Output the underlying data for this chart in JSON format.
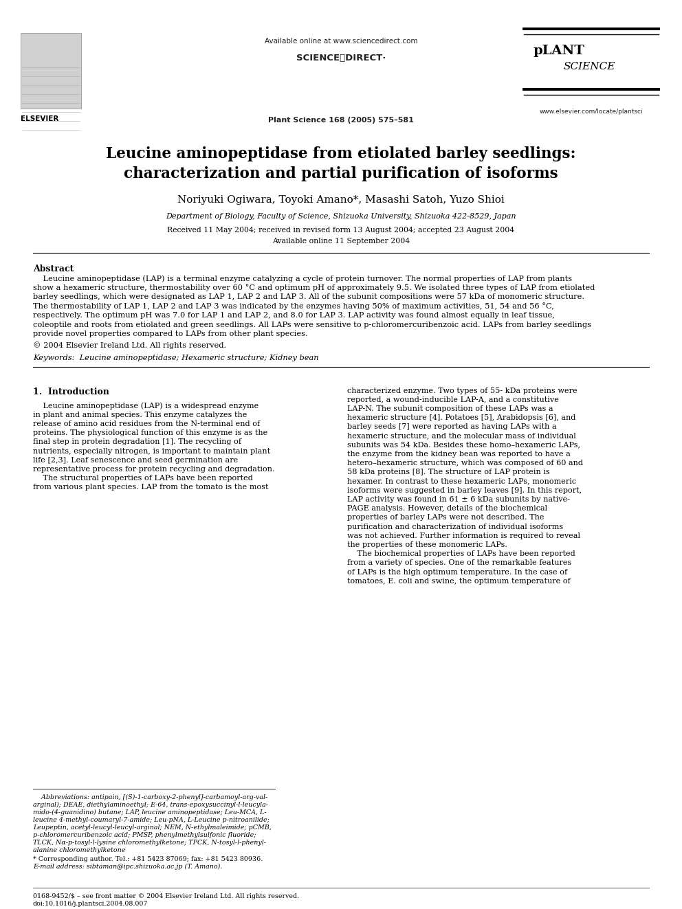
{
  "title_line1": "Leucine aminopeptidase from etiolated barley seedlings:",
  "title_line2": "characterization and partial purification of isoforms",
  "authors": "Noriyuki Ogiwara, Toyoki Amano*, Masashi Satoh, Yuzo Shioi",
  "affiliation": "Department of Biology, Faculty of Science, Shizuoka University, Shizuoka 422-8529, Japan",
  "dates": "Received 11 May 2004; received in revised form 13 August 2004; accepted 23 August 2004",
  "available_online": "Available online 11 September 2004",
  "journal": "Plant Science 168 (2005) 575–581",
  "url_top": "Available online at www.sciencedirect.com",
  "url_bottom": "www.elsevier.com/locate/plantsci",
  "abstract_title": "Abstract",
  "copyright": "© 2004 Elsevier Ireland Ltd. All rights reserved.",
  "keywords": "Keywords:  Leucine aminopeptidase; Hexameric structure; Kidney bean",
  "section1_title": "1.  Introduction",
  "footnote_star": "* Corresponding author. Tel.: +81 5423 87069; fax: +81 5423 80936.",
  "footnote_email": "E-mail address: sibtaman@ipc.shizuoka.ac.jp (T. Amano).",
  "footer_left": "0168-9452/$ – see front matter © 2004 Elsevier Ireland Ltd. All rights reserved.",
  "footer_doi": "doi:10.1016/j.plantsci.2004.08.007",
  "bg_color": "#ffffff",
  "abstract_lines": [
    "    Leucine aminopeptidase (LAP) is a terminal enzyme catalyzing a cycle of protein turnover. The normal properties of LAP from plants",
    "show a hexameric structure, thermostability over 60 °C and optimum pH of approximately 9.5. We isolated three types of LAP from etiolated",
    "barley seedlings, which were designated as LAP 1, LAP 2 and LAP 3. All of the subunit compositions were 57 kDa of monomeric structure.",
    "The thermostability of LAP 1, LAP 2 and LAP 3 was indicated by the enzymes having 50% of maximum activities, 51, 54 and 56 °C,",
    "respectively. The optimum pH was 7.0 for LAP 1 and LAP 2, and 8.0 for LAP 3. LAP activity was found almost equally in leaf tissue,",
    "coleoptile and roots from etiolated and green seedlings. All LAPs were sensitive to p-chloromercuribenzoic acid. LAPs from barley seedlings",
    "provide novel properties compared to LAPs from other plant species."
  ],
  "left_col_lines": [
    "    Leucine aminopeptidase (LAP) is a widespread enzyme",
    "in plant and animal species. This enzyme catalyzes the",
    "release of amino acid residues from the N-terminal end of",
    "proteins. The physiological function of this enzyme is as the",
    "final step in protein degradation [1]. The recycling of",
    "nutrients, especially nitrogen, is important to maintain plant",
    "life [2,3]. Leaf senescence and seed germination are",
    "representative process for protein recycling and degradation.",
    "    The structural properties of LAPs have been reported",
    "from various plant species. LAP from the tomato is the most"
  ],
  "right_col_lines": [
    "characterized enzyme. Two types of 55- kDa proteins were",
    "reported, a wound-inducible LAP-A, and a constitutive",
    "LAP-N. The subunit composition of these LAPs was a",
    "hexameric structure [4]. Potatoes [5], Arabidopsis [6], and",
    "barley seeds [7] were reported as having LAPs with a",
    "hexameric structure, and the molecular mass of individual",
    "subunits was 54 kDa. Besides these homo–hexameric LAPs,",
    "the enzyme from the kidney bean was reported to have a",
    "hetero–hexameric structure, which was composed of 60 and",
    "58 kDa proteins [8]. The structure of LAP protein is",
    "hexamer. In contrast to these hexameric LAPs, monomeric",
    "isoforms were suggested in barley leaves [9]. In this report,",
    "LAP activity was found in 61 ± 6 kDa subunits by native-",
    "PAGE analysis. However, details of the biochemical",
    "properties of barley LAPs were not described. The",
    "purification and characterization of individual isoforms",
    "was not achieved. Further information is required to reveal",
    "the properties of these monomeric LAPs.",
    "    The biochemical properties of LAPs have been reported",
    "from a variety of species. One of the remarkable features",
    "of LAPs is the high optimum temperature. In the case of",
    "tomatoes, E. coli and swine, the optimum temperature of"
  ],
  "fn_lines": [
    "    Abbreviations: antipain, [(S)-1-carboxy-2-phenyl]-carbamoyl-arg-val-",
    "arginal); DEAE, diethylaminoethyl; E-64, trans-epoxysuccinyl-l-leucyla-",
    "mido-(4-guanidino) butane; LAP, leucine aminopeptidase; Leu-MCA, L-",
    "leucine 4-methyl-coumaryl-7-amide; Leu-pNA, L-Leucine p-nitroanilide;",
    "Leupeptin, acetyl-leucyl-leucyl-arginal; NEM, N-ethylmaleimide; pCMB,",
    "p-chloromercuribenzoic acid; PMSP, phenylmethylsulfonic fluoride;",
    "TLCK, Nα-p-tosyl-l-lysine chloromethylketone; TPCK, N-tosyl-l-phenyl-",
    "alanine chloromethylketone"
  ]
}
